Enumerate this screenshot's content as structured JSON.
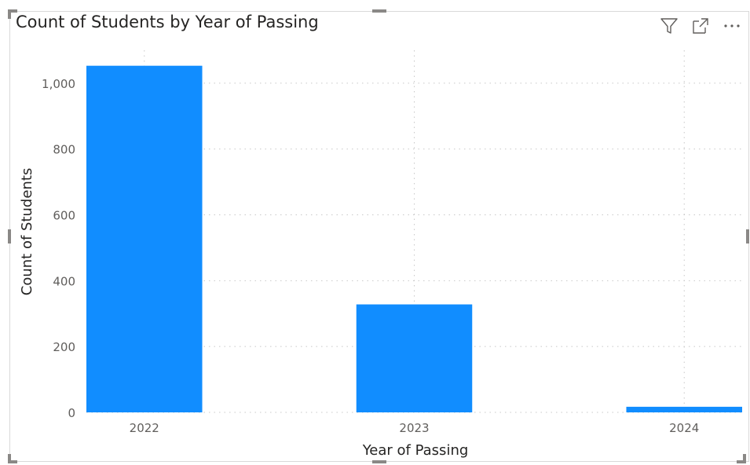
{
  "visual": {
    "title": "Count of Students by Year of Passing",
    "icons": [
      "filter-icon",
      "focus-mode-icon",
      "more-options-icon"
    ]
  },
  "colors": {
    "bar": "#118DFF",
    "grid": "#c8c8c8",
    "tick_text": "#605e5c",
    "axis_title": "#252423"
  },
  "chart_data": {
    "type": "bar",
    "title": "Count of Students by Year of Passing",
    "categories": [
      "2022",
      "2023",
      "2024"
    ],
    "values": [
      1053,
      328,
      17
    ],
    "xlabel": "Year of Passing",
    "ylabel": "Count of Students",
    "ylim": [
      0,
      1100
    ],
    "yticks": [
      0,
      200,
      400,
      600,
      800,
      1000
    ],
    "ytick_labels": [
      "0",
      "200",
      "400",
      "600",
      "800",
      "1,000"
    ],
    "grid": true
  }
}
